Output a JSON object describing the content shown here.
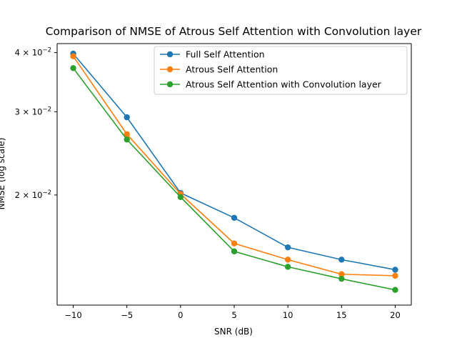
{
  "chart_data": {
    "type": "line",
    "title": "Comparison of NMSE of Atrous Self Attention with Convolution layer",
    "xlabel": "SNR (dB)",
    "ylabel": "NMSE (log scale)",
    "y_scale": "log",
    "grid": false,
    "legend_position": "top-right",
    "xlim": [
      -11.5,
      21.5
    ],
    "ylim": [
      0.0117,
      0.0418
    ],
    "x": [
      -10,
      -5,
      0,
      5,
      10,
      15,
      20
    ],
    "x_tick_labels": [
      "−10",
      "−5",
      "0",
      "5",
      "10",
      "15",
      "20"
    ],
    "y_ticks": [
      {
        "value": 0.04,
        "base": "4 × 10",
        "exp": "−2"
      },
      {
        "value": 0.03,
        "base": "3 × 10",
        "exp": "−2"
      },
      {
        "value": 0.02,
        "base": "2 × 10",
        "exp": "−2"
      }
    ],
    "series": [
      {
        "name": "Full Self Attention",
        "color": "#1f77b4",
        "values": [
          0.0398,
          0.0292,
          0.0202,
          0.0179,
          0.0155,
          0.0146,
          0.0139
        ]
      },
      {
        "name": "Atrous Self Attention",
        "color": "#ff7f0e",
        "values": [
          0.0393,
          0.0269,
          0.0201,
          0.0158,
          0.0146,
          0.0136,
          0.0135
        ]
      },
      {
        "name": "Atrous Self Attention with Convolution layer",
        "color": "#2ca02c",
        "values": [
          0.0371,
          0.0262,
          0.0198,
          0.0152,
          0.0141,
          0.0133,
          0.0126
        ]
      }
    ]
  }
}
